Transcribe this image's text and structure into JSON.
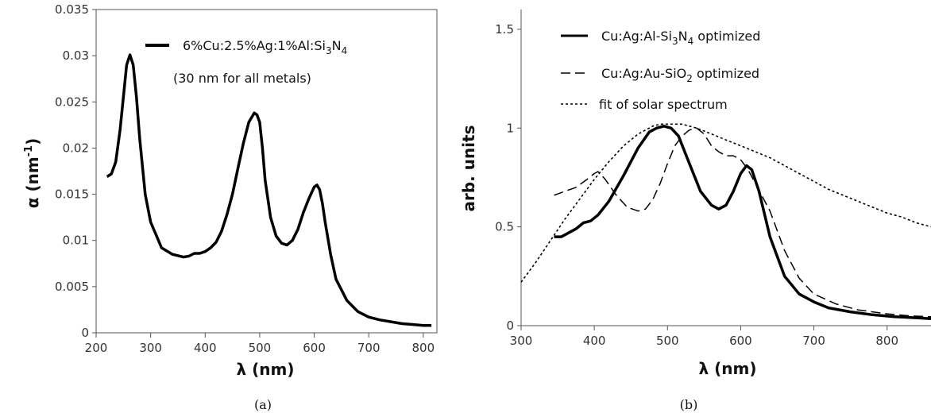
{
  "captions": {
    "a": "(a)",
    "b": "(b)"
  },
  "chart_data": [
    {
      "type": "line",
      "panel": "a",
      "xlabel": "λ (nm)",
      "ylabel": "α (nm",
      "ylabel_sup": "-1",
      "ylabel_close": ")",
      "xlim": [
        200,
        825
      ],
      "ylim": [
        0,
        0.035
      ],
      "xticks": [
        200,
        300,
        400,
        500,
        600,
        700,
        800
      ],
      "yticks": [
        "0",
        "0.005",
        "0.01",
        "0.015",
        "0.02",
        "0.025",
        "0.03",
        "0.035"
      ],
      "ytick_values": [
        0,
        0.005,
        0.01,
        0.015,
        0.02,
        0.025,
        0.03,
        0.035
      ],
      "legend": {
        "label": {
          "main": "6%Cu:2.5%Ag:1%Al:Si",
          "sub1": "3",
          "mid": "N",
          "sub2": "4"
        },
        "note": "(30 nm for all metals)"
      },
      "series": [
        {
          "style": "solid",
          "x": [
            220,
            228,
            236,
            244,
            250,
            256,
            262,
            268,
            274,
            280,
            290,
            300,
            320,
            340,
            360,
            370,
            380,
            390,
            400,
            410,
            420,
            430,
            440,
            450,
            460,
            470,
            480,
            490,
            495,
            500,
            505,
            510,
            520,
            530,
            540,
            550,
            560,
            570,
            580,
            590,
            600,
            605,
            610,
            615,
            620,
            630,
            640,
            660,
            680,
            700,
            720,
            740,
            760,
            780,
            800,
            815
          ],
          "y": [
            0.0169,
            0.0172,
            0.0185,
            0.022,
            0.0255,
            0.029,
            0.0301,
            0.029,
            0.0255,
            0.021,
            0.015,
            0.012,
            0.0092,
            0.0085,
            0.0082,
            0.0083,
            0.0086,
            0.0086,
            0.0088,
            0.0092,
            0.0098,
            0.011,
            0.0128,
            0.015,
            0.0178,
            0.0205,
            0.0228,
            0.0238,
            0.0236,
            0.0228,
            0.02,
            0.0165,
            0.0125,
            0.0105,
            0.0097,
            0.0095,
            0.01,
            0.0112,
            0.013,
            0.0145,
            0.0158,
            0.016,
            0.0155,
            0.014,
            0.012,
            0.0085,
            0.0058,
            0.0035,
            0.0023,
            0.0017,
            0.0014,
            0.0012,
            0.001,
            0.0009,
            0.0008,
            0.0008
          ]
        }
      ]
    },
    {
      "type": "line",
      "panel": "b",
      "xlabel": "λ (nm)",
      "ylabel": "arb. units",
      "xlim": [
        300,
        860
      ],
      "ylim": [
        0,
        1.6
      ],
      "xticks": [
        300,
        400,
        500,
        600,
        700,
        800
      ],
      "yticks": [
        "0",
        "0.5",
        "1",
        "1.5"
      ],
      "ytick_values": [
        0,
        0.5,
        1,
        1.5
      ],
      "series": [
        {
          "legend": {
            "main": "Cu:Ag:Al-Si",
            "sub1": "3",
            "mid": "N",
            "sub2": "4",
            "tail": " optimized"
          },
          "style": "solid",
          "x": [
            345,
            355,
            365,
            375,
            385,
            395,
            405,
            420,
            440,
            460,
            475,
            485,
            495,
            505,
            515,
            530,
            545,
            560,
            570,
            580,
            590,
            600,
            608,
            615,
            625,
            640,
            660,
            680,
            700,
            720,
            750,
            780,
            810,
            840,
            860
          ],
          "y": [
            0.45,
            0.45,
            0.47,
            0.49,
            0.52,
            0.53,
            0.56,
            0.63,
            0.76,
            0.9,
            0.98,
            1.0,
            1.01,
            1.0,
            0.96,
            0.82,
            0.68,
            0.61,
            0.59,
            0.61,
            0.68,
            0.77,
            0.81,
            0.79,
            0.68,
            0.45,
            0.25,
            0.16,
            0.12,
            0.09,
            0.07,
            0.055,
            0.045,
            0.04,
            0.035
          ]
        },
        {
          "legend": {
            "main": "Cu:Ag:Au-SiO",
            "sub1": "2",
            "mid": "",
            "sub2": "",
            "tail": " optimized"
          },
          "style": "dashed",
          "x": [
            345,
            360,
            375,
            390,
            400,
            405,
            415,
            430,
            445,
            460,
            470,
            480,
            490,
            500,
            510,
            520,
            530,
            540,
            550,
            560,
            570,
            580,
            590,
            600,
            610,
            620,
            640,
            660,
            680,
            700,
            730,
            760,
            800,
            830,
            860
          ],
          "y": [
            0.66,
            0.68,
            0.7,
            0.74,
            0.77,
            0.78,
            0.74,
            0.66,
            0.6,
            0.58,
            0.59,
            0.64,
            0.72,
            0.82,
            0.91,
            0.96,
            0.99,
            1.0,
            0.97,
            0.91,
            0.88,
            0.86,
            0.86,
            0.84,
            0.79,
            0.72,
            0.58,
            0.38,
            0.24,
            0.16,
            0.11,
            0.08,
            0.06,
            0.05,
            0.045
          ]
        },
        {
          "legend": {
            "main": " fit of solar spectrum",
            "sub1": "",
            "mid": "",
            "sub2": "",
            "tail": ""
          },
          "style": "dotted",
          "x": [
            300,
            320,
            340,
            360,
            380,
            400,
            420,
            440,
            460,
            480,
            490,
            500,
            520,
            540,
            560,
            580,
            600,
            620,
            640,
            660,
            680,
            700,
            720,
            740,
            760,
            780,
            800,
            820,
            840,
            860
          ],
          "y": [
            0.22,
            0.32,
            0.43,
            0.54,
            0.64,
            0.74,
            0.83,
            0.91,
            0.97,
            1.01,
            1.02,
            1.02,
            1.02,
            1.0,
            0.97,
            0.94,
            0.91,
            0.88,
            0.85,
            0.81,
            0.77,
            0.73,
            0.69,
            0.66,
            0.63,
            0.6,
            0.57,
            0.55,
            0.52,
            0.5
          ]
        }
      ]
    }
  ]
}
